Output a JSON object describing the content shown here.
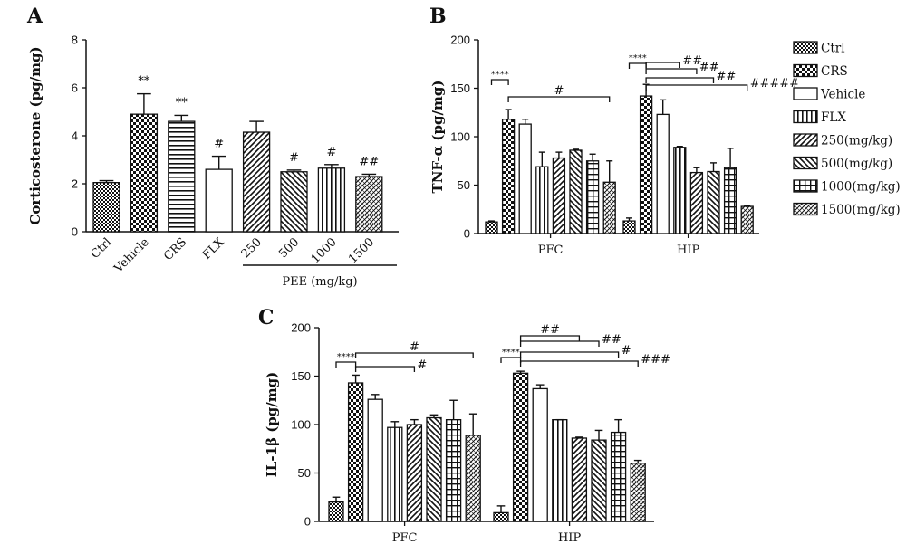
{
  "colors": {
    "ink": "#111111",
    "background": "#ffffff"
  },
  "legend": [
    "Ctrl",
    "CRS",
    "Vehicle",
    "FLX",
    "250(mg/kg)",
    "500(mg/kg)",
    "1000(mg/kg)",
    "1500(mg/kg)"
  ],
  "chart_data": [
    {
      "panel": "A",
      "type": "bar",
      "ylabel": "Corticosterone (pg/mg)",
      "ylim": [
        0,
        8
      ],
      "yticks": [
        0,
        2,
        4,
        6,
        8
      ],
      "categories": [
        "Ctrl",
        "Vehicle",
        "CRS",
        "FLX",
        "250",
        "500",
        "1000",
        "1500"
      ],
      "group_label": "PEE (mg/kg)",
      "values": [
        2.05,
        4.9,
        4.6,
        2.6,
        4.15,
        2.5,
        2.65,
        2.3
      ],
      "errors": [
        0.08,
        0.85,
        0.25,
        0.55,
        0.45,
        0.07,
        0.15,
        0.1
      ],
      "significance": [
        "",
        "**",
        "**",
        "#",
        "",
        "#",
        "#",
        "##"
      ]
    },
    {
      "panel": "B",
      "type": "bar",
      "ylabel": "TNF-α (pg/mg)",
      "ylim": [
        0,
        200
      ],
      "yticks": [
        0,
        50,
        100,
        150,
        200
      ],
      "groups": [
        "PFC",
        "HIP"
      ],
      "series": [
        {
          "name": "Ctrl",
          "values": [
            12,
            13
          ],
          "errors": [
            1,
            3
          ]
        },
        {
          "name": "CRS",
          "values": [
            118,
            142
          ],
          "errors": [
            10,
            12
          ]
        },
        {
          "name": "Vehicle",
          "values": [
            113,
            123
          ],
          "errors": [
            5,
            15
          ]
        },
        {
          "name": "FLX",
          "values": [
            69,
            89
          ],
          "errors": [
            15,
            1
          ]
        },
        {
          "name": "250(mg/kg)",
          "values": [
            78,
            63
          ],
          "errors": [
            6,
            5
          ]
        },
        {
          "name": "500(mg/kg)",
          "values": [
            86,
            64
          ],
          "errors": [
            1,
            9
          ]
        },
        {
          "name": "1000(mg/kg)",
          "values": [
            75,
            68
          ],
          "errors": [
            7,
            20
          ]
        },
        {
          "name": "1500(mg/kg)",
          "values": [
            53,
            28
          ],
          "errors": [
            22,
            1
          ]
        }
      ],
      "significance": [
        "****",
        "#",
        "****",
        "##",
        "##",
        "##",
        "#####"
      ]
    },
    {
      "panel": "C",
      "type": "bar",
      "ylabel": "IL-1β (pg/mg)",
      "ylim": [
        0,
        200
      ],
      "yticks": [
        0,
        50,
        100,
        150,
        200
      ],
      "groups": [
        "PFC",
        "HIP"
      ],
      "series": [
        {
          "name": "Ctrl",
          "values": [
            20,
            9
          ],
          "errors": [
            5,
            7
          ]
        },
        {
          "name": "CRS",
          "values": [
            143,
            153
          ],
          "errors": [
            8,
            2
          ]
        },
        {
          "name": "Vehicle",
          "values": [
            126,
            137
          ],
          "errors": [
            5,
            4
          ]
        },
        {
          "name": "FLX",
          "values": [
            97,
            105
          ],
          "errors": [
            6,
            0
          ]
        },
        {
          "name": "250(mg/kg)",
          "values": [
            100,
            86
          ],
          "errors": [
            5,
            1
          ]
        },
        {
          "name": "500(mg/kg)",
          "values": [
            107,
            84
          ],
          "errors": [
            3,
            10
          ]
        },
        {
          "name": "1000(mg/kg)",
          "values": [
            105,
            92
          ],
          "errors": [
            20,
            13
          ]
        },
        {
          "name": "1500(mg/kg)",
          "values": [
            89,
            60
          ],
          "errors": [
            22,
            3
          ]
        }
      ],
      "significance": [
        "****",
        "#",
        "#",
        "****",
        "##",
        "##",
        "#",
        "###"
      ]
    }
  ]
}
